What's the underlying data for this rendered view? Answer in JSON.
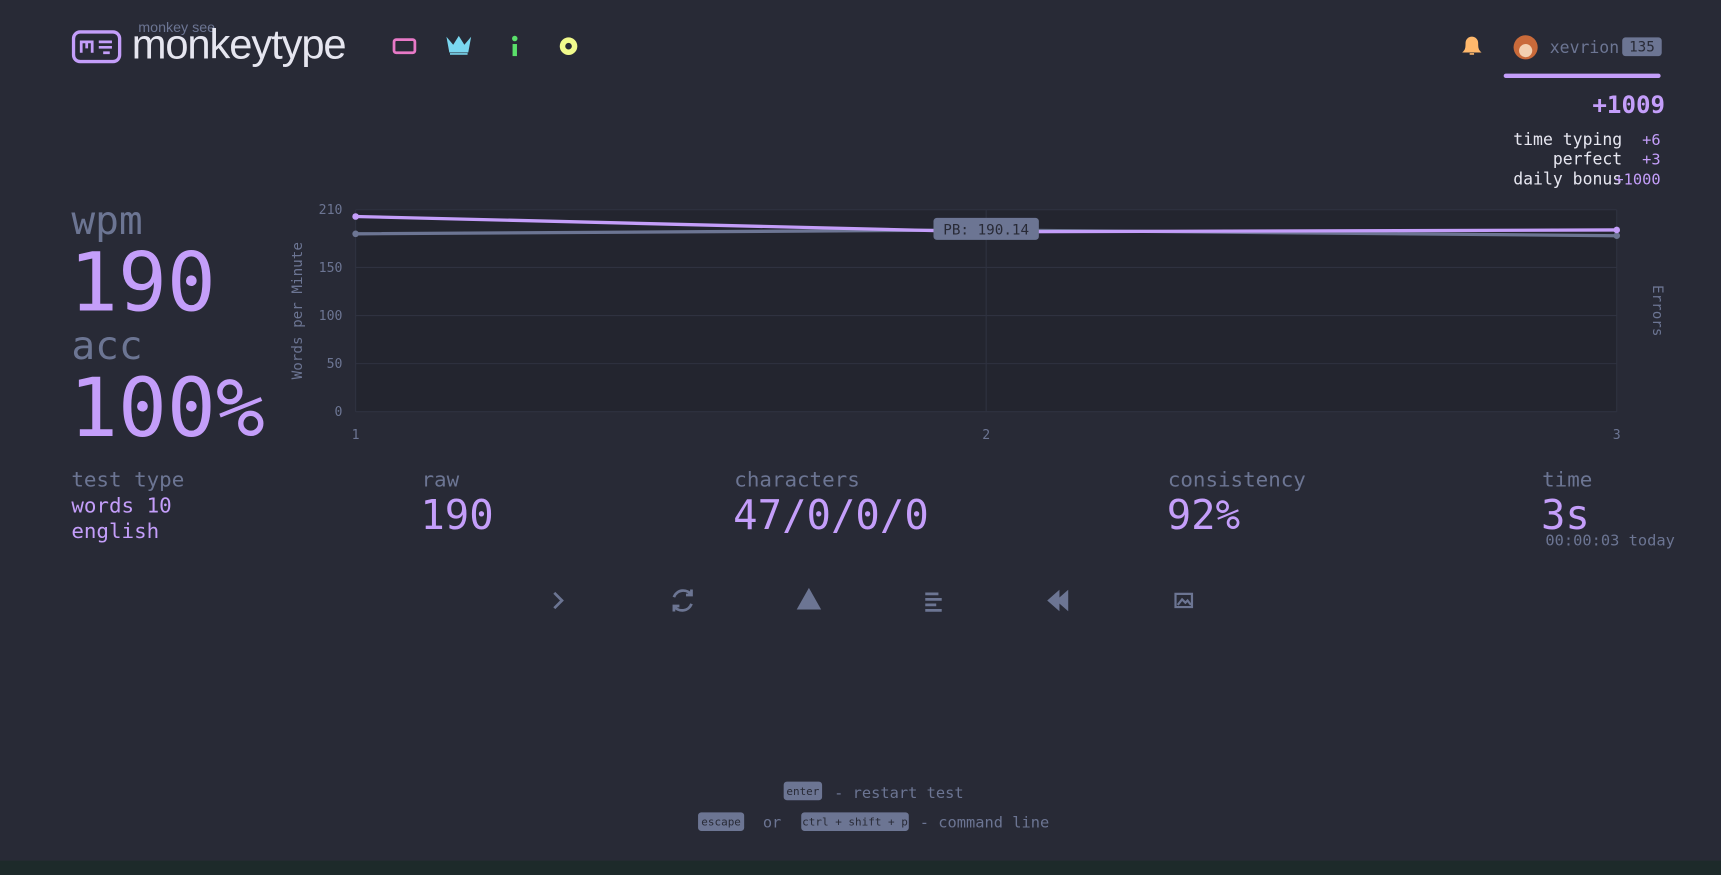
{
  "header": {
    "logo_small": "monkey see",
    "logo": "monkeytype",
    "username": "xevrion",
    "level": "135"
  },
  "xp": {
    "total": "+1009",
    "breakdown": [
      {
        "label": "time typing",
        "value": "+6"
      },
      {
        "label": "perfect",
        "value": "+3"
      },
      {
        "label": "daily bonus",
        "value": "+1000"
      }
    ]
  },
  "stats": {
    "wpm_label": "wpm",
    "wpm": "190",
    "acc_label": "acc",
    "acc": "100%",
    "test_type_label": "test type",
    "test_type": [
      "words 10",
      "english"
    ],
    "raw_label": "raw",
    "raw": "190",
    "characters_label": "characters",
    "characters": "47/0/0/0",
    "consistency_label": "consistency",
    "consistency": "92%",
    "time_label": "time",
    "time": "3s",
    "time_detail": "00:00:03 today"
  },
  "chart_data": {
    "type": "line",
    "x": [
      1,
      2,
      3
    ],
    "xlim": [
      1,
      3
    ],
    "xticks": [
      1,
      2,
      3
    ],
    "ylim": [
      0,
      210
    ],
    "yticks": [
      0,
      50,
      100,
      150,
      210
    ],
    "y_label": "Words per Minute",
    "y2_label": "Errors",
    "grid": true,
    "series": [
      {
        "color": "#6c7593",
        "values": [
          185,
          189,
          183
        ]
      },
      {
        "color": "#c49efa",
        "values": [
          203,
          187,
          189
        ]
      }
    ],
    "annotations": [
      {
        "value": 190.14,
        "label": "PB: 190.14"
      }
    ]
  },
  "footer": {
    "restart_key": "enter",
    "restart_text": "- restart test",
    "escape_key": "escape",
    "or": "or",
    "command_key": "ctrl + shift + p",
    "command_text": "- command line"
  }
}
